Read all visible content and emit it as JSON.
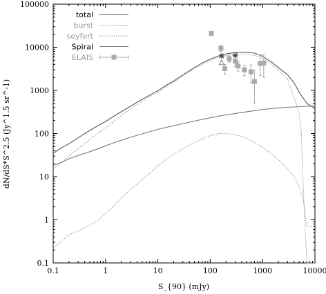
{
  "chart_data": {
    "type": "line",
    "title": "",
    "xlabel": "S_{90} (mJy)",
    "ylabel": "dN/dS*S^2.5 (Jy^1.5 sr^-1)",
    "x_scale": "log",
    "y_scale": "log",
    "xlim": [
      0.1,
      10000
    ],
    "ylim": [
      0.1,
      100000
    ],
    "x_ticks": [
      0.1,
      1,
      10,
      100,
      1000,
      10000
    ],
    "x_tick_labels": [
      "0.1",
      "1",
      "10",
      "100",
      "1000",
      "10000"
    ],
    "y_ticks": [
      0.1,
      1,
      10,
      100,
      1000,
      10000,
      100000
    ],
    "y_tick_labels": [
      "0.1",
      "1",
      "10",
      "100",
      "1000",
      "10000",
      "100000"
    ],
    "grid": false,
    "legend_position": "top-left",
    "series": [
      {
        "name": "total",
        "color": "#555555",
        "style": "solid",
        "x": [
          0.1,
          0.15,
          0.2,
          0.3,
          0.5,
          0.7,
          1,
          1.5,
          2,
          3,
          5,
          7,
          10,
          15,
          20,
          30,
          50,
          70,
          100,
          150,
          200,
          300,
          500,
          700,
          1000,
          1500,
          2000,
          3000,
          4000,
          5000,
          7000,
          10000
        ],
        "y": [
          35,
          48,
          58,
          80,
          118,
          150,
          190,
          260,
          320,
          430,
          620,
          780,
          980,
          1350,
          1650,
          2300,
          3400,
          4300,
          5300,
          6400,
          7000,
          7600,
          7700,
          7300,
          6200,
          4500,
          3400,
          2300,
          1500,
          900,
          500,
          380
        ]
      },
      {
        "name": "burst",
        "color": "#999999",
        "style": "dotted",
        "x": [
          0.1,
          0.15,
          0.2,
          0.3,
          0.5,
          0.7,
          1,
          1.5,
          2,
          3,
          5,
          7,
          10,
          15,
          20,
          30,
          50,
          70,
          100,
          150,
          200,
          300,
          500,
          700,
          1000,
          1500,
          2000,
          3000,
          4000,
          5000,
          5500,
          6000,
          7000,
          10000
        ],
        "y": [
          15,
          22,
          30,
          45,
          72,
          100,
          135,
          200,
          260,
          370,
          550,
          720,
          900,
          1250,
          1550,
          2150,
          3200,
          4000,
          4900,
          5900,
          6400,
          6900,
          6900,
          6500,
          5500,
          4000,
          2900,
          1800,
          700,
          300,
          100,
          5,
          0.1,
          0.1
        ]
      },
      {
        "name": "seyfert",
        "color": "#999999",
        "style": "dotted",
        "x": [
          0.1,
          0.15,
          0.2,
          0.3,
          0.5,
          0.7,
          1,
          1.5,
          2,
          3,
          5,
          7,
          10,
          15,
          20,
          30,
          50,
          70,
          100,
          150,
          200,
          300,
          500,
          700,
          1000,
          1500,
          2000,
          3000,
          4000,
          5000,
          6000,
          7000,
          10000
        ],
        "y": [
          0.22,
          0.33,
          0.45,
          0.55,
          0.75,
          0.95,
          1.4,
          2.2,
          3.2,
          5.0,
          8.5,
          12,
          18,
          26,
          33,
          45,
          62,
          75,
          90,
          100,
          100,
          95,
          78,
          62,
          48,
          33,
          25,
          15,
          10,
          6,
          3,
          0.7,
          0.7
        ]
      },
      {
        "name": "Spiral",
        "color": "#777777",
        "style": "solid",
        "x": [
          0.1,
          0.15,
          0.2,
          0.3,
          0.5,
          0.7,
          1,
          1.5,
          2,
          3,
          5,
          7,
          10,
          15,
          20,
          30,
          50,
          70,
          100,
          150,
          200,
          300,
          500,
          700,
          1000,
          1500,
          2000,
          3000,
          5000,
          7000,
          10000
        ],
        "y": [
          18,
          22,
          26,
          31,
          38,
          44,
          52,
          62,
          70,
          82,
          98,
          110,
          125,
          140,
          152,
          170,
          195,
          212,
          232,
          255,
          270,
          292,
          320,
          340,
          360,
          380,
          392,
          405,
          420,
          430,
          440
        ]
      },
      {
        "name": "ELAIS",
        "color": "#aaaaaa",
        "style": "points-with-errorbars",
        "points": [
          {
            "x": 105,
            "y": 21000,
            "yerr_lo": 0,
            "yerr_hi": 0
          },
          {
            "x": 160,
            "y": 9500,
            "yerr_lo": 1500,
            "yerr_hi": 1500
          },
          {
            "x": 190,
            "y": 3200,
            "yerr_lo": 800,
            "yerr_hi": 800
          },
          {
            "x": 230,
            "y": 5400,
            "yerr_lo": 900,
            "yerr_hi": 900
          },
          {
            "x": 300,
            "y": 4800,
            "yerr_lo": 1200,
            "yerr_hi": 1200
          },
          {
            "x": 340,
            "y": 3700,
            "yerr_lo": 900,
            "yerr_hi": 900
          },
          {
            "x": 450,
            "y": 3000,
            "yerr_lo": 800,
            "yerr_hi": 800
          },
          {
            "x": 600,
            "y": 2700,
            "yerr_lo": 1200,
            "yerr_hi": 1200
          },
          {
            "x": 700,
            "y": 1600,
            "yerr_lo": 1100,
            "yerr_hi": 1300
          },
          {
            "x": 900,
            "y": 4200,
            "yerr_lo": 2000,
            "yerr_hi": 2500
          },
          {
            "x": 1050,
            "y": 4300,
            "yerr_lo": 2300,
            "yerr_hi": 2500
          }
        ]
      },
      {
        "name": "",
        "color": "#444444",
        "style": "star-markers",
        "points": [
          {
            "x": 165,
            "y": 6300
          },
          {
            "x": 300,
            "y": 6500
          }
        ]
      },
      {
        "name": "",
        "color": "#888888",
        "style": "open-triangle",
        "points": [
          {
            "x": 165,
            "y": 4400
          }
        ]
      }
    ]
  }
}
